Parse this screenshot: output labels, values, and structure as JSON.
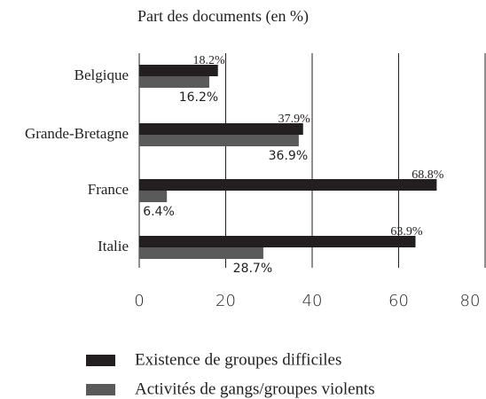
{
  "chart_data": {
    "type": "hbar",
    "title": "Part des documents (en %)",
    "categories": [
      "Belgique",
      "Grande-Bretagne",
      "France",
      "Italie"
    ],
    "series": [
      {
        "name": "Existence de groupes difficiles",
        "color": "#231f20",
        "values": [
          18.2,
          37.9,
          68.8,
          63.9
        ],
        "value_labels": [
          "18.2%",
          "37.9%",
          "68.8%",
          "63.9%"
        ]
      },
      {
        "name": "Activités de gangs/groupes violents",
        "color": "#5a5a5a",
        "values": [
          16.2,
          36.9,
          6.4,
          28.7
        ],
        "value_labels": [
          "16.2%",
          "36.9%",
          "6.4%",
          "28.7%"
        ]
      }
    ],
    "xlim": [
      0,
      80
    ],
    "xticks": [
      0,
      20,
      40,
      60,
      80
    ],
    "grid": true,
    "legend": "bottom"
  }
}
